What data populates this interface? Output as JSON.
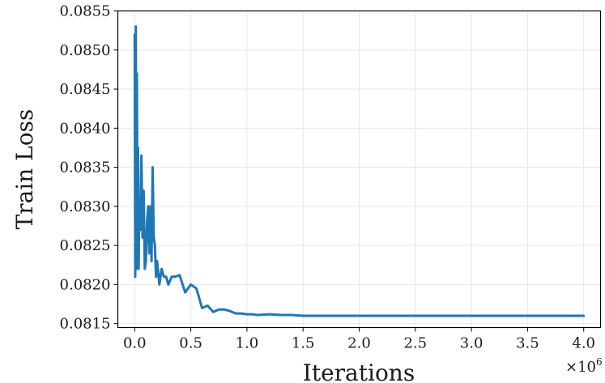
{
  "chart_data": {
    "type": "line",
    "xlabel": "Iterations",
    "ylabel": "Train Loss",
    "x_multiplier_label": "×10",
    "x_multiplier_exponent": "6",
    "xlim": [
      -0.15,
      4.15
    ],
    "ylim": [
      0.08145,
      0.0855
    ],
    "x_ticks": [
      0.0,
      0.5,
      1.0,
      1.5,
      2.0,
      2.5,
      3.0,
      3.5,
      4.0
    ],
    "x_tick_labels": [
      "0.0",
      "0.5",
      "1.0",
      "1.5",
      "2.0",
      "2.5",
      "3.0",
      "3.5",
      "4.0"
    ],
    "y_ticks": [
      0.0815,
      0.082,
      0.0825,
      0.083,
      0.0835,
      0.084,
      0.0845,
      0.085,
      0.0855
    ],
    "y_tick_labels": [
      "0.0815",
      "0.0820",
      "0.0825",
      "0.0830",
      "0.0835",
      "0.0840",
      "0.0845",
      "0.0850",
      "0.0855"
    ],
    "grid": true,
    "color": "#1f77b4",
    "series": [
      {
        "x": [
          0.0,
          0.005,
          0.01,
          0.015,
          0.02,
          0.025,
          0.03,
          0.035,
          0.04,
          0.05,
          0.06,
          0.07,
          0.08,
          0.09,
          0.1,
          0.11,
          0.12,
          0.13,
          0.14,
          0.15,
          0.16,
          0.17,
          0.18,
          0.19,
          0.2,
          0.22,
          0.24,
          0.26,
          0.28,
          0.3,
          0.33,
          0.36,
          0.4,
          0.45,
          0.5,
          0.55,
          0.6,
          0.65,
          0.7,
          0.75,
          0.8,
          0.85,
          0.9,
          0.95,
          1.0,
          1.05,
          1.1,
          1.2,
          1.3,
          1.4,
          1.5,
          1.7,
          2.0,
          2.5,
          3.0,
          3.5,
          4.0
        ],
        "y": [
          0.0852,
          0.0821,
          0.0853,
          0.0822,
          0.0847,
          0.0823,
          0.08375,
          0.0822,
          0.0829,
          0.0827,
          0.08365,
          0.0826,
          0.0832,
          0.0822,
          0.0823,
          0.0828,
          0.083,
          0.0824,
          0.083,
          0.0823,
          0.0835,
          0.0826,
          0.0825,
          0.0821,
          0.0823,
          0.082,
          0.0822,
          0.0821,
          0.0821,
          0.082,
          0.0821,
          0.0821,
          0.08212,
          0.0819,
          0.082,
          0.08195,
          0.0817,
          0.08173,
          0.08165,
          0.08168,
          0.08168,
          0.08166,
          0.08163,
          0.08163,
          0.08162,
          0.08162,
          0.08161,
          0.08162,
          0.08161,
          0.08161,
          0.0816,
          0.0816,
          0.0816,
          0.0816,
          0.0816,
          0.0816,
          0.0816
        ]
      }
    ]
  }
}
